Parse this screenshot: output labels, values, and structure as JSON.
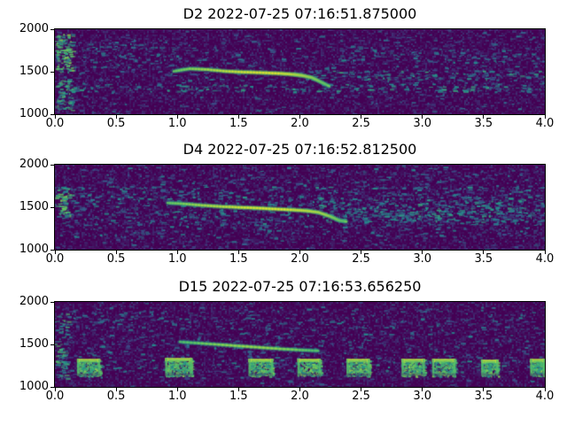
{
  "figure": {
    "background": "#ffffff",
    "text_color": "#000000"
  },
  "chart_data": {
    "type": "heatmap",
    "subtype": "spectrogram",
    "layout": "3 stacked subplots, shared axis ranges",
    "colormap": "viridis",
    "colormap_stops": [
      [
        0,
        "#440154"
      ],
      [
        0.25,
        "#3b528b"
      ],
      [
        0.5,
        "#21918c"
      ],
      [
        0.75,
        "#5ec962"
      ],
      [
        1,
        "#fde725"
      ]
    ],
    "x_range": [
      0,
      4
    ],
    "y_range": [
      1000,
      2000
    ],
    "xtick_values": [
      0,
      0.5,
      1,
      1.5,
      2,
      2.5,
      3,
      3.5,
      4
    ],
    "xtick_labels": [
      "0.0",
      "0.5",
      "1.0",
      "1.5",
      "2.0",
      "2.5",
      "3.0",
      "3.5",
      "4.0"
    ],
    "ytick_values": [
      2000,
      1500,
      1000
    ],
    "ytick_labels": [
      "2000",
      "1500",
      "1000"
    ],
    "panels": [
      {
        "title": "D2 2022-07-25 07:16:51.875000",
        "seed": 101,
        "whistle": {
          "strength": 1.0,
          "points": [
            [
              0.97,
              1505
            ],
            [
              1.1,
              1535
            ],
            [
              1.25,
              1525
            ],
            [
              1.4,
              1505
            ],
            [
              1.55,
              1495
            ],
            [
              1.7,
              1488
            ],
            [
              1.85,
              1478
            ],
            [
              1.95,
              1468
            ],
            [
              2.02,
              1455
            ],
            [
              2.1,
              1430
            ],
            [
              2.17,
              1380
            ],
            [
              2.24,
              1330
            ]
          ]
        },
        "noise_bands": [
          {
            "t": [
              0,
              4
            ],
            "f": [
              1000,
              2000
            ],
            "density": 0.5,
            "level": [
              0.15,
              0.45
            ]
          },
          {
            "t": [
              0,
              4
            ],
            "f": [
              1270,
              1360
            ],
            "density": 5.0,
            "level": [
              0.3,
              0.6
            ]
          },
          {
            "t": [
              2.05,
              4
            ],
            "f": [
              1410,
              1520
            ],
            "density": 4.5,
            "level": [
              0.3,
              0.62
            ]
          },
          {
            "t": [
              0,
              0.14
            ],
            "f": [
              1500,
              1950
            ],
            "density": 16,
            "level": [
              0.45,
              0.85
            ]
          },
          {
            "t": [
              0,
              0.14
            ],
            "f": [
              1050,
              1420
            ],
            "density": 10,
            "level": [
              0.4,
              0.75
            ]
          },
          {
            "t": [
              0,
              4
            ],
            "f": [
              1360,
              1950
            ],
            "density": 1.2,
            "level": [
              0.18,
              0.45
            ]
          },
          {
            "t": [
              0.2,
              1.0
            ],
            "f": [
              1550,
              1850
            ],
            "density": 2.5,
            "level": [
              0.25,
              0.5
            ]
          },
          {
            "t": [
              2.3,
              4
            ],
            "f": [
              1600,
              1800
            ],
            "density": 2.0,
            "level": [
              0.25,
              0.5
            ]
          },
          {
            "t": [
              0,
              4
            ],
            "f": [
              1000,
              1270
            ],
            "density": 0.8,
            "level": [
              0.15,
              0.4
            ]
          }
        ],
        "bursts": []
      },
      {
        "title": "D4 2022-07-25 07:16:52.812500",
        "seed": 202,
        "whistle": {
          "strength": 1.0,
          "points": [
            [
              0.92,
              1550
            ],
            [
              1.05,
              1540
            ],
            [
              1.2,
              1522
            ],
            [
              1.35,
              1508
            ],
            [
              1.5,
              1498
            ],
            [
              1.65,
              1490
            ],
            [
              1.8,
              1478
            ],
            [
              1.95,
              1468
            ],
            [
              2.05,
              1458
            ],
            [
              2.15,
              1440
            ],
            [
              2.25,
              1390
            ],
            [
              2.32,
              1345
            ],
            [
              2.38,
              1330
            ]
          ]
        },
        "noise_bands": [
          {
            "t": [
              0,
              4
            ],
            "f": [
              1000,
              2000
            ],
            "density": 0.6,
            "level": [
              0.15,
              0.45
            ]
          },
          {
            "t": [
              0,
              4
            ],
            "f": [
              1300,
              1750
            ],
            "density": 3.2,
            "level": [
              0.22,
              0.55
            ]
          },
          {
            "t": [
              0,
              4
            ],
            "f": [
              1150,
              1300
            ],
            "density": 2.2,
            "level": [
              0.2,
              0.5
            ]
          },
          {
            "t": [
              0,
              4
            ],
            "f": [
              1750,
              1980
            ],
            "density": 1.5,
            "level": [
              0.2,
              0.45
            ]
          },
          {
            "t": [
              0,
              0.12
            ],
            "f": [
              1400,
              1750
            ],
            "density": 12,
            "level": [
              0.4,
              0.8
            ]
          },
          {
            "t": [
              2.15,
              4
            ],
            "f": [
              1330,
              1620
            ],
            "density": 4.0,
            "level": [
              0.28,
              0.6
            ]
          },
          {
            "t": [
              2.3,
              4
            ],
            "f": [
              1350,
              1500
            ],
            "density": 3.0,
            "level": [
              0.3,
              0.6
            ]
          },
          {
            "t": [
              0,
              4
            ],
            "f": [
              1000,
              1150
            ],
            "density": 0.9,
            "level": [
              0.15,
              0.4
            ]
          }
        ],
        "bursts": []
      },
      {
        "title": "D15 2022-07-25 07:16:53.656250",
        "seed": 303,
        "whistle": {
          "strength": 0.72,
          "points": [
            [
              1.02,
              1530
            ],
            [
              1.2,
              1512
            ],
            [
              1.4,
              1492
            ],
            [
              1.6,
              1472
            ],
            [
              1.8,
              1452
            ],
            [
              2.0,
              1435
            ],
            [
              2.15,
              1425
            ]
          ]
        },
        "noise_bands": [
          {
            "t": [
              0,
              4
            ],
            "f": [
              1000,
              2000
            ],
            "density": 0.5,
            "level": [
              0.15,
              0.45
            ]
          },
          {
            "t": [
              0,
              4
            ],
            "f": [
              1330,
              1950
            ],
            "density": 1.6,
            "level": [
              0.2,
              0.48
            ]
          },
          {
            "t": [
              0,
              4
            ],
            "f": [
              1180,
              1330
            ],
            "density": 2.5,
            "level": [
              0.25,
              0.55
            ]
          },
          {
            "t": [
              0,
              0.1
            ],
            "f": [
              1100,
              1900
            ],
            "density": 8,
            "level": [
              0.35,
              0.7
            ]
          },
          {
            "t": [
              0.1,
              0.9
            ],
            "f": [
              1700,
              1900
            ],
            "density": 2.5,
            "level": [
              0.25,
              0.5
            ]
          },
          {
            "t": [
              0,
              4
            ],
            "f": [
              1000,
              1120
            ],
            "density": 0.8,
            "level": [
              0.15,
              0.4
            ]
          }
        ],
        "bursts": [
          {
            "t": [
              0.18,
              0.37
            ],
            "f": [
              1130,
              1330
            ]
          },
          {
            "t": [
              0.9,
              1.12
            ],
            "f": [
              1130,
              1340
            ]
          },
          {
            "t": [
              1.58,
              1.78
            ],
            "f": [
              1130,
              1330
            ]
          },
          {
            "t": [
              1.98,
              2.17
            ],
            "f": [
              1130,
              1330
            ]
          },
          {
            "t": [
              2.38,
              2.57
            ],
            "f": [
              1130,
              1330
            ]
          },
          {
            "t": [
              2.83,
              3.02
            ],
            "f": [
              1130,
              1330
            ]
          },
          {
            "t": [
              3.08,
              3.27
            ],
            "f": [
              1130,
              1330
            ]
          },
          {
            "t": [
              3.48,
              3.62
            ],
            "f": [
              1130,
              1320
            ]
          },
          {
            "t": [
              3.88,
              4.0
            ],
            "f": [
              1130,
              1330
            ]
          }
        ]
      }
    ]
  }
}
